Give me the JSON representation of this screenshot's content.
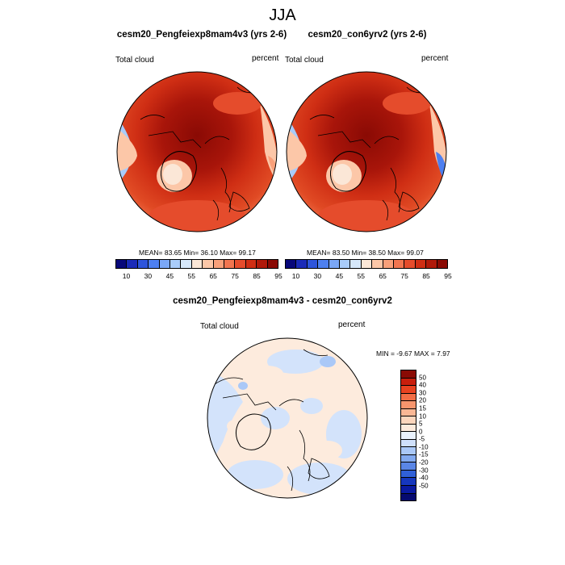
{
  "title": "JJA",
  "panel1": {
    "title": "cesm20_Pengfeiexp8mam4v3 (yrs 2-6)",
    "left_label": "Total cloud",
    "right_label": "percent",
    "stats": "MEAN=  83.65  Min=  36.10  Max=  99.17",
    "field": "icon-polar-cloud-field"
  },
  "panel2": {
    "title": "cesm20_con6yrv2 (yrs 2-6)",
    "left_label": "Total cloud",
    "right_label": "percent",
    "stats": "MEAN=  83.50  Min=  38.50  Max=  99.07",
    "field": "icon-polar-cloud-field"
  },
  "panel3": {
    "title": "cesm20_Pengfeiexp8mam4v3 - cesm20_con6yrv2",
    "left_label": "Total cloud",
    "right_label": "percent",
    "stats": "MIN =  -9.67 MAX =   7.97",
    "field": "icon-polar-cloud-difference-field"
  },
  "colorbar_abs": {
    "colors": [
      "#08087a",
      "#1b2bb8",
      "#2e55db",
      "#4d7ff0",
      "#7aa7f7",
      "#a9ccfa",
      "#d6e8fb",
      "#fbe7d7",
      "#fcc7a8",
      "#f9a07a",
      "#f27550",
      "#e54c2c",
      "#cf2e14",
      "#b0190a",
      "#8a0a04"
    ],
    "ticks": [
      "10",
      "30",
      "45",
      "55",
      "65",
      "75",
      "85",
      "95"
    ]
  },
  "colorbar_diff": {
    "colors": [
      "#8a0a04",
      "#c81e0c",
      "#e84220",
      "#f26d45",
      "#f7956d",
      "#fab795",
      "#fcd6bd",
      "#fdebdd",
      "#eaf2fd",
      "#cfe0fb",
      "#aac8f7",
      "#82a9ef",
      "#5a86e6",
      "#3060d8",
      "#1637bd",
      "#0a1aa0",
      "#060a70"
    ],
    "ticks": [
      "50",
      "40",
      "30",
      "20",
      "15",
      "10",
      "5",
      "0",
      "-5",
      "-10",
      "-15",
      "-20",
      "-30",
      "-40",
      "-50"
    ]
  }
}
